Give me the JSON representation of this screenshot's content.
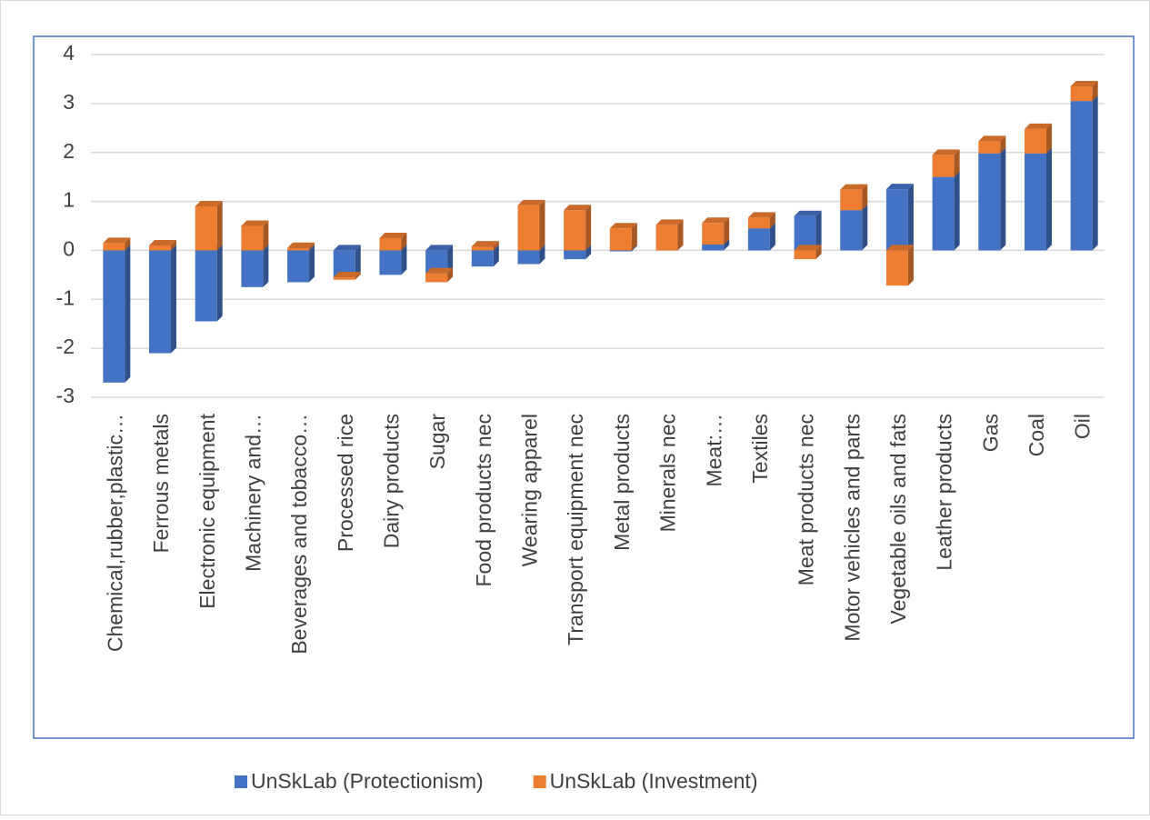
{
  "chart_data": {
    "type": "stacked-bar-3d",
    "categories": [
      "Chemical,rubber,plastic…",
      "Ferrous metals",
      "Electronic equipment",
      "Machinery and…",
      "Beverages and tobacco…",
      "Processed rice",
      "Dairy products",
      "Sugar",
      "Food products nec",
      "Wearing apparel",
      "Transport equipment nec",
      "Metal products",
      "Minerals nec",
      "Meat:…",
      "Textiles",
      "Meat products nec",
      "Motor vehicles and parts",
      "Vegetable oils and fats",
      "Leather products",
      "Gas",
      "Coal",
      "Oil"
    ],
    "series": [
      {
        "name": "UnSkLab (Protectionism)",
        "color": "#4472c4",
        "values": [
          -2.7,
          -2.1,
          -1.45,
          -0.75,
          -0.65,
          -0.55,
          -0.5,
          -0.47,
          -0.33,
          -0.28,
          -0.18,
          -0.02,
          0,
          0.12,
          0.45,
          0.7,
          0.82,
          1.25,
          1.5,
          1.98,
          1.98,
          3.05
        ]
      },
      {
        "name": "UnSkLab (Investment)",
        "color": "#ed7d31",
        "values": [
          0.15,
          0.1,
          0.9,
          0.5,
          0.05,
          -0.05,
          0.25,
          -0.18,
          0.08,
          0.92,
          0.82,
          0.45,
          0.52,
          0.44,
          0.22,
          -0.18,
          0.42,
          -0.72,
          0.45,
          0.25,
          0.5,
          0.3
        ]
      }
    ],
    "ylim": [
      -3,
      4
    ],
    "yticks": [
      -3,
      -2,
      -1,
      0,
      1,
      2,
      3,
      4
    ],
    "grid": true,
    "legend": "bottom"
  }
}
